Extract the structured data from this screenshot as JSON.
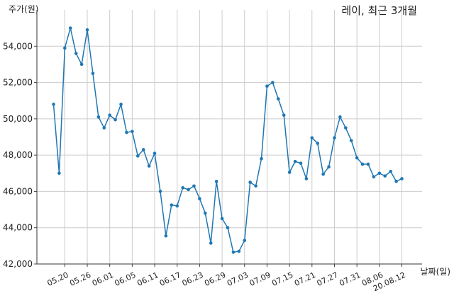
{
  "chart_data": {
    "type": "line",
    "title": "레이, 최근 3개월",
    "ylabel": "주가(원)",
    "xlabel": "날짜(일)",
    "ylim": [
      42000,
      56000
    ],
    "yticks": [
      42000,
      44000,
      46000,
      48000,
      50000,
      52000,
      54000
    ],
    "ytick_labels": [
      "42,000",
      "44,000",
      "46,000",
      "48,000",
      "50,000",
      "52,000",
      "54,000"
    ],
    "xtick_labels": [
      "05.20",
      "05.26",
      "06.01",
      "06.05",
      "06.11",
      "06.17",
      "06.23",
      "06.29",
      "07.03",
      "07.09",
      "07.15",
      "07.21",
      "07.27",
      "07.31",
      "08.06",
      "20.08.12"
    ],
    "xtick_indices": [
      2,
      6,
      10,
      14,
      18,
      22,
      26,
      30,
      34,
      38,
      42,
      46,
      50,
      54,
      58,
      62
    ],
    "grid": true,
    "color": "#1f77b4",
    "series": [
      {
        "values": [
          50800,
          47000,
          53900,
          55000,
          53600,
          53000,
          54900,
          52500,
          50100,
          49500,
          50200,
          49950,
          50800,
          49250,
          49300,
          47950,
          48300,
          47400,
          48100,
          46000,
          43550,
          45250,
          45200,
          46200,
          46100,
          46300,
          45600,
          44800,
          43150,
          46550,
          44500,
          44000,
          42650,
          42700,
          43300,
          46500,
          46300,
          47800,
          51800,
          52000,
          51100,
          50200,
          47050,
          47650,
          47550,
          46700,
          48950,
          48650,
          46950,
          47350,
          48950,
          50100,
          49500,
          48800,
          47850,
          47500,
          47500,
          46800,
          47000,
          46850,
          47100,
          46550,
          46700
        ]
      }
    ]
  }
}
